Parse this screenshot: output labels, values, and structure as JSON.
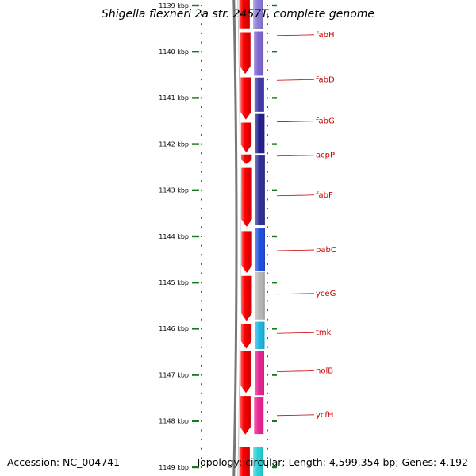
{
  "title": "Shigella flexneri 2a str. 2457T, complete genome",
  "footer": {
    "accession": "Accession: NC_004741",
    "summary": "Topology: circular; Length: 4,599,354 bp; Genes: 4,192"
  },
  "axis": {
    "unit": "kbp",
    "ticks": [
      {
        "kbp": 1139,
        "label": "1139 kbp"
      },
      {
        "kbp": 1140,
        "label": "1140 kbp"
      },
      {
        "kbp": 1141,
        "label": "1141 kbp"
      },
      {
        "kbp": 1142,
        "label": "1142 kbp"
      },
      {
        "kbp": 1143,
        "label": "1143 kbp"
      },
      {
        "kbp": 1144,
        "label": "1144 kbp"
      },
      {
        "kbp": 1145,
        "label": "1145 kbp"
      },
      {
        "kbp": 1146,
        "label": "1146 kbp"
      },
      {
        "kbp": 1147,
        "label": "1147 kbp"
      },
      {
        "kbp": 1148,
        "label": "1148 kbp"
      },
      {
        "kbp": 1149,
        "label": "1149 kbp"
      }
    ]
  },
  "colors": {
    "cds": "#ff0000",
    "backbone": "#777777",
    "label": "#cc0000",
    "tick": "#1a7a1a"
  },
  "cds_blocks": [
    {
      "start": 1138.85,
      "end": 1139.5,
      "arrow": false
    },
    {
      "start": 1139.57,
      "end": 1140.49,
      "arrow": true
    },
    {
      "start": 1140.55,
      "end": 1141.48,
      "arrow": true
    },
    {
      "start": 1141.53,
      "end": 1142.19,
      "arrow": true
    },
    {
      "start": 1142.22,
      "end": 1142.44,
      "arrow": true
    },
    {
      "start": 1142.51,
      "end": 1143.8,
      "arrow": true
    },
    {
      "start": 1143.88,
      "end": 1144.8,
      "arrow": true
    },
    {
      "start": 1144.85,
      "end": 1145.84,
      "arrow": true
    },
    {
      "start": 1145.9,
      "end": 1146.44,
      "arrow": true
    },
    {
      "start": 1146.48,
      "end": 1147.4,
      "arrow": true
    },
    {
      "start": 1147.45,
      "end": 1148.3,
      "arrow": true
    },
    {
      "start": 1148.55,
      "end": 1149.2,
      "arrow": false
    }
  ],
  "genes": [
    {
      "name": "fabH",
      "start": 1138.85,
      "end": 1139.5,
      "color": "#8a7ad8",
      "label_kbp": 1139.65
    },
    {
      "name": "fabD",
      "start": 1139.55,
      "end": 1140.52,
      "color": "#7a62d0",
      "label_kbp": 1140.62
    },
    {
      "name": "fabG",
      "start": 1140.55,
      "end": 1141.3,
      "color": "#3d35a8",
      "label_kbp": 1141.52
    },
    {
      "name": "acpP",
      "start": 1141.34,
      "end": 1142.2,
      "color": "#1c1a8a",
      "label_kbp": 1142.26
    },
    {
      "name": "fabF",
      "start": 1142.24,
      "end": 1143.76,
      "color": "#2a2a96",
      "label_kbp": 1143.12
    },
    {
      "name": "pabC",
      "start": 1143.82,
      "end": 1144.74,
      "color": "#1a4adc",
      "label_kbp": 1144.31
    },
    {
      "name": "yceG",
      "start": 1144.76,
      "end": 1145.8,
      "color": "#b4b4b4",
      "label_kbp": 1145.25
    },
    {
      "name": "tmk",
      "start": 1145.84,
      "end": 1146.44,
      "color": "#16b4e0",
      "label_kbp": 1146.1
    },
    {
      "name": "holB",
      "start": 1146.48,
      "end": 1147.44,
      "color": "#e61e8c",
      "label_kbp": 1146.93
    },
    {
      "name": "ycfH",
      "start": 1147.48,
      "end": 1148.28,
      "color": "#e8208f",
      "label_kbp": 1147.88
    },
    {
      "name": "",
      "start": 1148.55,
      "end": 1149.2,
      "color": "#22d2d8",
      "label_kbp": null
    }
  ]
}
